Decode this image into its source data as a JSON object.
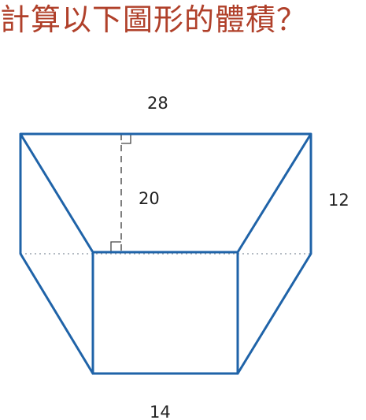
{
  "question": "計算以下圖形的體積？",
  "labels": {
    "top_width": "28",
    "height": "20",
    "depth": "12",
    "bottom_width": "14"
  },
  "colors": {
    "title": "#b0402a",
    "outline": "#1f63a8",
    "dashed": "#555555",
    "hidden_edge": "#9aa4ad"
  }
}
